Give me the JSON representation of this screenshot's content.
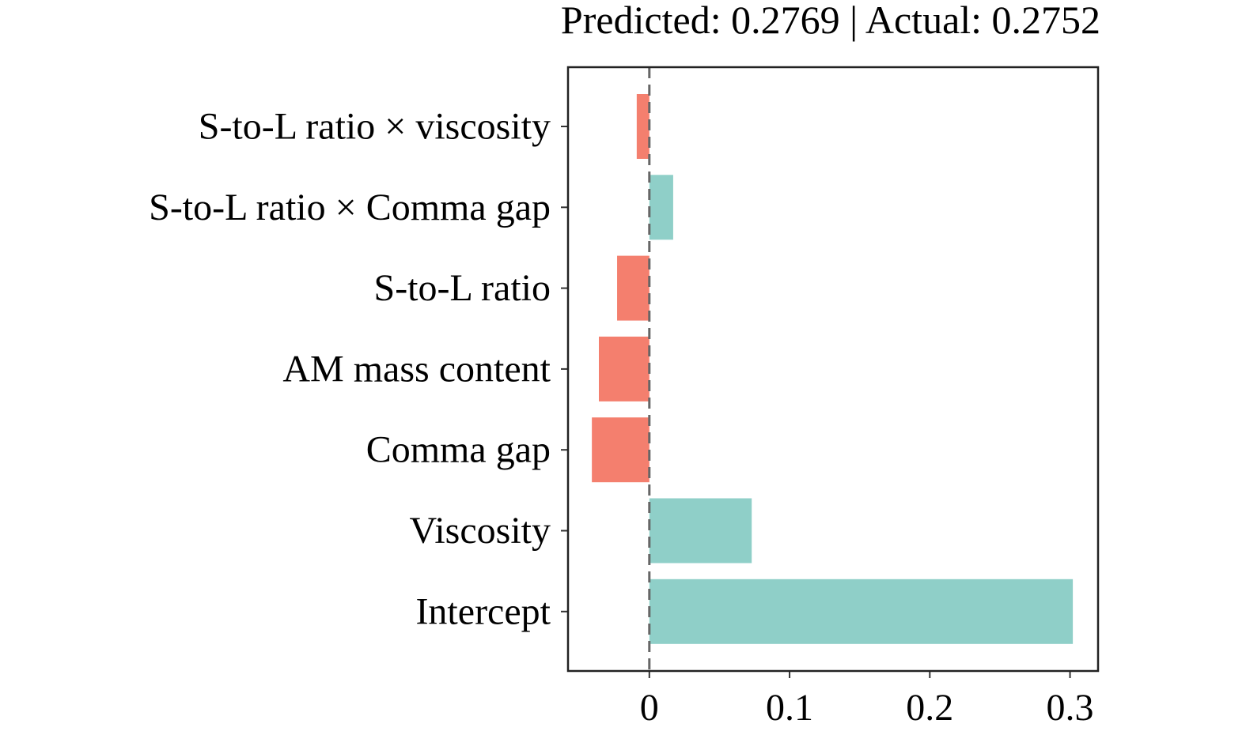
{
  "chart_data": {
    "type": "bar",
    "orientation": "horizontal",
    "title": "Predicted: 0.2769 | Actual: 0.2752",
    "xlabel": "",
    "ylabel": "",
    "categories": [
      "S-to-L ratio × viscosity",
      "S-to-L ratio × Comma gap",
      "S-to-L ratio",
      "AM mass content",
      "Comma gap",
      "Viscosity",
      "Intercept"
    ],
    "values": [
      -0.009,
      0.017,
      -0.023,
      -0.036,
      -0.041,
      0.073,
      0.302
    ],
    "xlim": [
      -0.058,
      0.32
    ],
    "xticks": [
      0,
      0.1,
      0.2,
      0.3
    ],
    "xtick_labels": [
      "0",
      "0.1",
      "0.2",
      "0.3"
    ],
    "grid": false,
    "reference_line": 0,
    "colors": {
      "positive": "#8fcfc8",
      "negative": "#f47f6e"
    }
  }
}
